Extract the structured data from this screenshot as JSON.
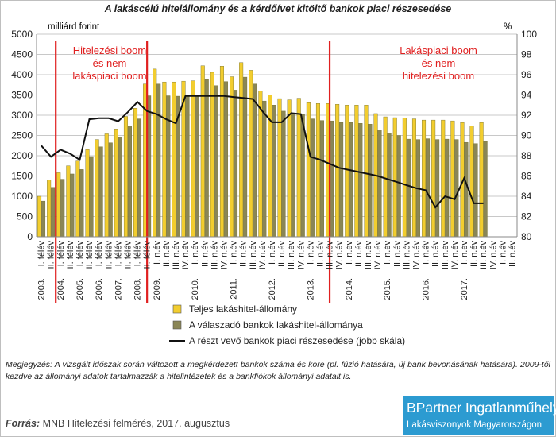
{
  "chart_data": {
    "type": "bar",
    "title": "A lakáscélú hitelállomány és a kérdőívet kitöltő bankok piaci részesedése",
    "y_left_label": "milliárd forint",
    "y_right_label": "%",
    "ylim_left": [
      0,
      5000
    ],
    "ylim_right": [
      80,
      100
    ],
    "yticks_left": [
      0,
      500,
      1000,
      1500,
      2000,
      2500,
      3000,
      3500,
      4000,
      4500,
      5000
    ],
    "yticks_right": [
      80,
      82,
      84,
      86,
      88,
      90,
      92,
      94,
      96,
      98,
      100
    ],
    "grid": "horizontal",
    "legend_position": "bottom",
    "categories": [
      "I. félév",
      "II. félév",
      "I. félév",
      "II. félév",
      "I. félév",
      "II. félév",
      "I. félév",
      "II. félév",
      "I. félév",
      "II. félév",
      "I. félév",
      "II. félév",
      "I. n.év",
      "II. n.év",
      "III. n.év",
      "IV. n.év",
      "I. n.év",
      "II. n.év",
      "III. n.év",
      "IV. n.év",
      "I. n.év",
      "II. n.év",
      "III. n.év",
      "IV. n.év",
      "I. n.év",
      "II. n.év",
      "III. n.év",
      "IV. n.év",
      "I. n.év",
      "II. n.év",
      "III. n.év",
      "IV. n.év",
      "I. n.év",
      "II. n.év",
      "III. n.év",
      "IV. n.év",
      "I. n.év",
      "II. n.év",
      "III. n.év",
      "IV. n.év",
      "I. n.év",
      "II. n.év",
      "III. n.év",
      "IV. n.év",
      "I. n.év",
      "II. n.év",
      "III. n.év",
      "IV. n.év",
      "I. n.év",
      "II. n.év"
    ],
    "year_labels": [
      {
        "index": 0,
        "label": "2003."
      },
      {
        "index": 2,
        "label": "2004."
      },
      {
        "index": 4,
        "label": "2005."
      },
      {
        "index": 6,
        "label": "2006."
      },
      {
        "index": 8,
        "label": "2007."
      },
      {
        "index": 10,
        "label": "2008."
      },
      {
        "index": 12,
        "label": "2009."
      },
      {
        "index": 16,
        "label": "2010."
      },
      {
        "index": 20,
        "label": "2011."
      },
      {
        "index": 24,
        "label": "2012."
      },
      {
        "index": 28,
        "label": "2013."
      },
      {
        "index": 32,
        "label": "2014."
      },
      {
        "index": 36,
        "label": "2015."
      },
      {
        "index": 40,
        "label": "2016."
      },
      {
        "index": 44,
        "label": "2017."
      }
    ],
    "series": [
      {
        "name": "Teljes lakáshitel-állomány",
        "type": "bar",
        "axis": "left",
        "color": "#f2cd2f",
        "values": [
          1000,
          1400,
          1580,
          1750,
          1870,
          2150,
          2400,
          2540,
          2660,
          2970,
          3170,
          3770,
          4140,
          3820,
          3820,
          3840,
          3850,
          4220,
          4060,
          4210,
          3950,
          4300,
          4110,
          3600,
          3500,
          3410,
          3380,
          3420,
          3310,
          3290,
          3290,
          3270,
          3250,
          3250,
          3250,
          3040,
          2960,
          2940,
          2930,
          2910,
          2880,
          2880,
          2880,
          2860,
          2820,
          2730,
          2820,
          null,
          null,
          null
        ]
      },
      {
        "name": "A válaszadó bankok lakáshitel-állománya",
        "type": "bar",
        "axis": "left",
        "color": "#8a8656",
        "values": [
          880,
          1220,
          1420,
          1550,
          1660,
          1980,
          2220,
          2320,
          2460,
          2740,
          2910,
          3480,
          3770,
          3480,
          3470,
          3490,
          3500,
          3880,
          3730,
          3830,
          3620,
          3940,
          3770,
          3350,
          3250,
          3100,
          3050,
          3020,
          2910,
          2870,
          2860,
          2820,
          2820,
          2800,
          2780,
          2640,
          2560,
          2500,
          2410,
          2400,
          2420,
          2400,
          2410,
          2400,
          2330,
          2300,
          2350,
          null,
          null,
          null
        ]
      },
      {
        "name": "A részt vevő bankok piaci részesedése (jobb skála)",
        "type": "line",
        "axis": "right",
        "color": "#111111",
        "values": [
          89.0,
          87.9,
          88.6,
          88.2,
          87.6,
          91.6,
          91.7,
          91.7,
          91.4,
          92.3,
          93.3,
          92.4,
          92.1,
          91.6,
          91.2,
          93.9,
          93.9,
          93.9,
          93.9,
          93.9,
          93.8,
          93.7,
          93.6,
          92.4,
          91.3,
          91.3,
          92.2,
          92.1,
          87.9,
          87.6,
          87.2,
          86.8,
          86.6,
          86.4,
          86.2,
          86.0,
          85.7,
          85.4,
          85.1,
          84.8,
          84.6,
          82.9,
          84.0,
          83.7,
          85.8,
          83.3,
          83.3,
          null,
          null,
          null
        ]
      }
    ],
    "boom_lines": [
      {
        "position_index": 2,
        "label": [
          "Hitelezési boom",
          "és nem",
          "lakáspiaci boom"
        ]
      },
      {
        "position_index": 11.5,
        "label": []
      },
      {
        "position_index": 30.5,
        "label": [
          "Lakáspiaci boom",
          "és nem",
          "hitelezési boom"
        ]
      }
    ],
    "boom_line_color": "#e02020"
  },
  "note": "Megjegyzés: A vizsgált időszak során változott a megkérdezett bankok száma és köre (pl. fúzió hatására, új bank bevonásának hatására). 2009-től kezdve az állományi adatok tartalmazzák a hitelintézetek és a bankfiókok állományi adatait is.",
  "source": {
    "label": "Forrás:",
    "text": "MNB Hitelezési felmérés, 2017. augusztus"
  },
  "brand": {
    "name": "BPartner Ingatlanműhely",
    "subtitle": "Lakásviszonyok Magyarországon",
    "color": "#2c9bd1"
  }
}
